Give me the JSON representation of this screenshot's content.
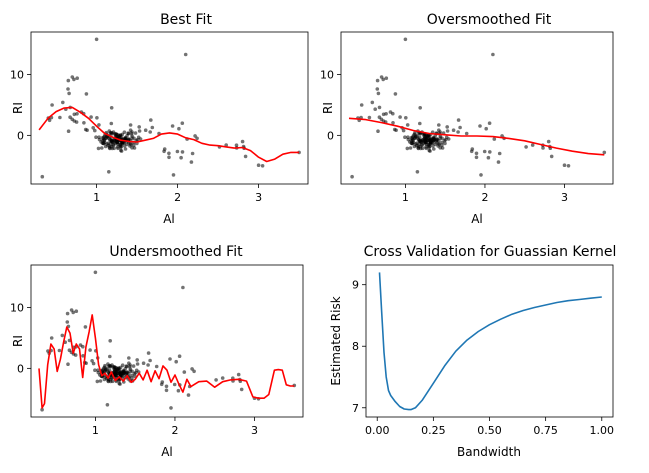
{
  "chart_data": [
    {
      "type": "scatter",
      "title": "Best Fit",
      "xlabel": "Al",
      "ylabel": "RI",
      "xlim": [
        0.19,
        3.61
      ],
      "ylim": [
        -8.0,
        17.0
      ],
      "xticks": [
        1,
        2,
        3
      ],
      "yticks": [
        0,
        10
      ],
      "point_color": "#000000",
      "fit_color": "#ff0000",
      "fit_x": [
        0.29,
        0.4,
        0.5,
        0.6,
        0.7,
        0.8,
        0.9,
        1.0,
        1.1,
        1.2,
        1.3,
        1.4,
        1.5,
        1.6,
        1.7,
        1.8,
        1.9,
        2.0,
        2.1,
        2.2,
        2.3,
        2.4,
        2.5,
        2.6,
        2.7,
        2.8,
        2.9,
        3.0,
        3.1,
        3.2,
        3.3,
        3.4,
        3.5
      ],
      "fit_y": [
        0.9,
        2.8,
        3.9,
        4.5,
        4.6,
        3.8,
        2.8,
        1.5,
        0.3,
        -0.3,
        -0.8,
        -1.0,
        -1.1,
        -0.8,
        -0.5,
        0.2,
        0.4,
        0.2,
        -0.4,
        -0.7,
        -1.3,
        -1.6,
        -1.7,
        -1.9,
        -2.1,
        -2.0,
        -2.5,
        -3.6,
        -4.3,
        -3.9,
        -3.1,
        -2.8,
        -2.8
      ]
    },
    {
      "type": "scatter",
      "title": "Oversmoothed Fit",
      "xlabel": "Al",
      "ylabel": "RI",
      "xlim": [
        0.19,
        3.61
      ],
      "ylim": [
        -8.0,
        17.0
      ],
      "xticks": [
        1,
        2,
        3
      ],
      "yticks": [
        0,
        10
      ],
      "point_color": "#000000",
      "fit_color": "#ff0000",
      "fit_x": [
        0.29,
        0.5,
        0.7,
        0.9,
        1.1,
        1.3,
        1.5,
        1.7,
        1.9,
        2.1,
        2.3,
        2.5,
        2.7,
        2.9,
        3.1,
        3.3,
        3.5
      ],
      "fit_y": [
        2.8,
        2.6,
        2.1,
        1.5,
        0.8,
        0.3,
        0.1,
        -0.1,
        -0.1,
        -0.2,
        -0.5,
        -0.9,
        -1.5,
        -2.1,
        -2.6,
        -3.0,
        -3.2
      ]
    },
    {
      "type": "scatter",
      "title": "Undersmoothed Fit",
      "xlabel": "Al",
      "ylabel": "RI",
      "xlim": [
        0.19,
        3.61
      ],
      "ylim": [
        -8.0,
        17.0
      ],
      "xticks": [
        1,
        2,
        3
      ],
      "yticks": [
        0,
        10
      ],
      "point_color": "#000000",
      "fit_color": "#ff0000",
      "fit_x": [
        0.29,
        0.33,
        0.36,
        0.4,
        0.44,
        0.48,
        0.52,
        0.56,
        0.6,
        0.64,
        0.68,
        0.72,
        0.76,
        0.8,
        0.84,
        0.88,
        0.92,
        0.96,
        1.0,
        1.04,
        1.08,
        1.12,
        1.16,
        1.2,
        1.25,
        1.3,
        1.35,
        1.4,
        1.45,
        1.5,
        1.55,
        1.6,
        1.65,
        1.7,
        1.75,
        1.8,
        1.85,
        1.9,
        1.95,
        2.0,
        2.05,
        2.1,
        2.15,
        2.2,
        2.3,
        2.4,
        2.5,
        2.6,
        2.7,
        2.8,
        2.9,
        2.98,
        3.05,
        3.12,
        3.18,
        3.25,
        3.3,
        3.35,
        3.4,
        3.45,
        3.5
      ],
      "fit_y": [
        0.0,
        -6.5,
        -5.8,
        0.6,
        4.0,
        3.2,
        -0.5,
        1.5,
        4.3,
        6.8,
        5.8,
        2.5,
        4.0,
        3.2,
        -1.5,
        3.5,
        6.0,
        8.8,
        5.0,
        0.6,
        -1.2,
        -0.8,
        -1.6,
        -0.6,
        -2.0,
        -1.4,
        -2.1,
        -1.2,
        -2.3,
        -1.8,
        -0.8,
        -1.9,
        -0.3,
        -2.2,
        -0.4,
        -1.7,
        0.4,
        -0.3,
        -2.3,
        -1.1,
        -2.6,
        -3.9,
        -1.8,
        -3.0,
        -2.2,
        -2.1,
        -3.1,
        -2.2,
        -1.9,
        -1.8,
        -2.1,
        -4.7,
        -4.9,
        -4.9,
        -4.3,
        -0.3,
        -0.2,
        -0.3,
        -2.7,
        -2.9,
        -2.9
      ]
    },
    {
      "type": "line",
      "title": "Cross Validation for Guassian Kernel",
      "xlabel": "Bandwidth",
      "ylabel": "Estimated Risk",
      "xlim": [
        -0.05,
        1.05
      ],
      "ylim": [
        6.85,
        9.32
      ],
      "xticks": [
        "0.00",
        "0.25",
        "0.50",
        "0.75",
        "1.00"
      ],
      "yticks": [
        7,
        8,
        9
      ],
      "line_color": "#1f77b4",
      "x": [
        0.01,
        0.02,
        0.03,
        0.04,
        0.05,
        0.06,
        0.08,
        0.1,
        0.12,
        0.14,
        0.15,
        0.17,
        0.2,
        0.25,
        0.3,
        0.35,
        0.4,
        0.45,
        0.5,
        0.55,
        0.6,
        0.65,
        0.7,
        0.75,
        0.8,
        0.85,
        0.9,
        0.95,
        1.0
      ],
      "y": [
        9.2,
        8.55,
        7.9,
        7.5,
        7.28,
        7.2,
        7.1,
        7.02,
        6.98,
        6.97,
        6.97,
        7.0,
        7.12,
        7.4,
        7.68,
        7.92,
        8.1,
        8.24,
        8.35,
        8.44,
        8.52,
        8.58,
        8.63,
        8.67,
        8.71,
        8.74,
        8.76,
        8.78,
        8.8
      ]
    }
  ]
}
